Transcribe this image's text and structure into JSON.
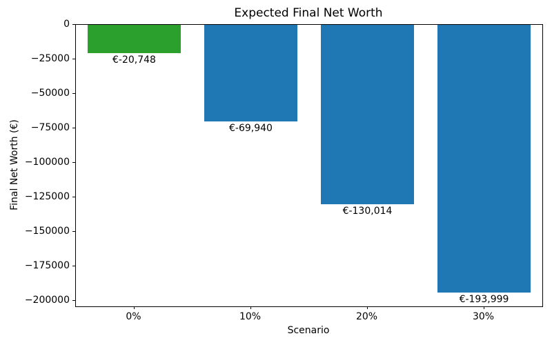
{
  "chart_data": {
    "type": "bar",
    "title": "Expected Final Net Worth",
    "xlabel": "Scenario",
    "ylabel": "Final Net Worth (€)",
    "categories": [
      "0%",
      "10%",
      "20%",
      "30%"
    ],
    "values": [
      -20748,
      -69940,
      -130014,
      -193999
    ],
    "bar_labels": [
      "€-20,748",
      "€-69,940",
      "€-130,014",
      "€-193,999"
    ],
    "bar_colors": [
      "#2ca02c",
      "#1f77b4",
      "#1f77b4",
      "#1f77b4"
    ],
    "bar_width_fraction": 0.8,
    "ylim": [
      -204000,
      0
    ],
    "yticks": [
      0,
      -25000,
      -50000,
      -75000,
      -100000,
      -125000,
      -150000,
      -175000,
      -200000
    ],
    "ytick_labels": [
      "0",
      "−25000",
      "−50000",
      "−75000",
      "−100000",
      "−125000",
      "−150000",
      "−175000",
      "−200000"
    ],
    "grid": false,
    "legend": "none",
    "spine_color": "#000000",
    "background_color": "#ffffff"
  }
}
